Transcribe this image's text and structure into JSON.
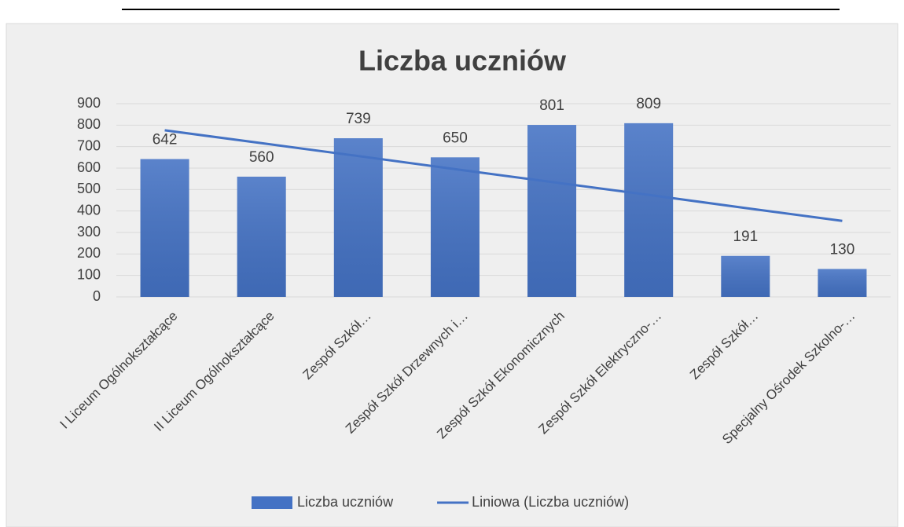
{
  "chart_data": {
    "type": "bar",
    "title": "Liczba uczniów",
    "categories": [
      "I Liceum Ogólnokształcące",
      "II Liceum Ogólnokształcące",
      "Zespół Szkół…",
      "Zespół Szkół Drzewnych i…",
      "Zespół Szkół Ekonomicznych",
      "Zespół Szkół Elektryczno-…",
      "Zespół Szkół…",
      "Specjalny Ośrodek Szkolno-…"
    ],
    "series": [
      {
        "name": "Liczba uczniów",
        "type": "bar",
        "color": "#4472c4",
        "values": [
          642,
          560,
          739,
          650,
          801,
          809,
          191,
          130
        ]
      },
      {
        "name": "Liniowa (Liczba uczniów)",
        "type": "line",
        "color": "#4472c4",
        "values": [
          776,
          716,
          656,
          595,
          535,
          475,
          414,
          354
        ]
      }
    ],
    "ylim": [
      0,
      900
    ],
    "yticks": [
      0,
      100,
      200,
      300,
      400,
      500,
      600,
      700,
      800,
      900
    ],
    "grid": true,
    "legend": "bottom"
  }
}
